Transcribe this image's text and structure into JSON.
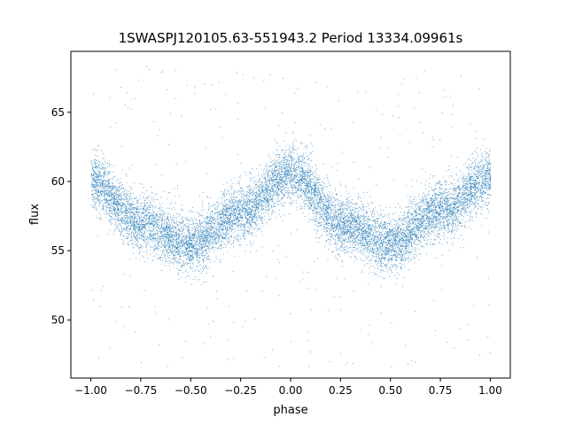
{
  "chart_data": {
    "type": "scatter",
    "title": "1SWASPJ120105.63-551943.2 Period 13334.09961s",
    "xlabel": "phase",
    "ylabel": "flux",
    "xlim": [
      -1.1,
      1.1
    ],
    "ylim": [
      45.8,
      69.4
    ],
    "xticks": [
      -1.0,
      -0.75,
      -0.5,
      -0.25,
      0.0,
      0.25,
      0.5,
      0.75,
      1.0
    ],
    "xtick_labels": [
      "−1.00",
      "−0.75",
      "−0.50",
      "−0.25",
      "0.00",
      "0.25",
      "0.50",
      "0.75",
      "1.00"
    ],
    "yticks": [
      50,
      55,
      60,
      65
    ],
    "ytick_labels": [
      "50",
      "55",
      "60",
      "65"
    ],
    "grid": false,
    "series": [
      {
        "color": "#1f77b4",
        "trend_x": [
          -1.0,
          -0.75,
          -0.5,
          -0.25,
          0.0,
          0.25,
          0.5,
          0.75,
          1.0
        ],
        "trend_y": [
          60.0,
          57.0,
          55.5,
          57.8,
          60.6,
          57.0,
          55.5,
          58.0,
          60.3
        ],
        "scatter": 1.0,
        "point_count": 12000
      }
    ]
  }
}
